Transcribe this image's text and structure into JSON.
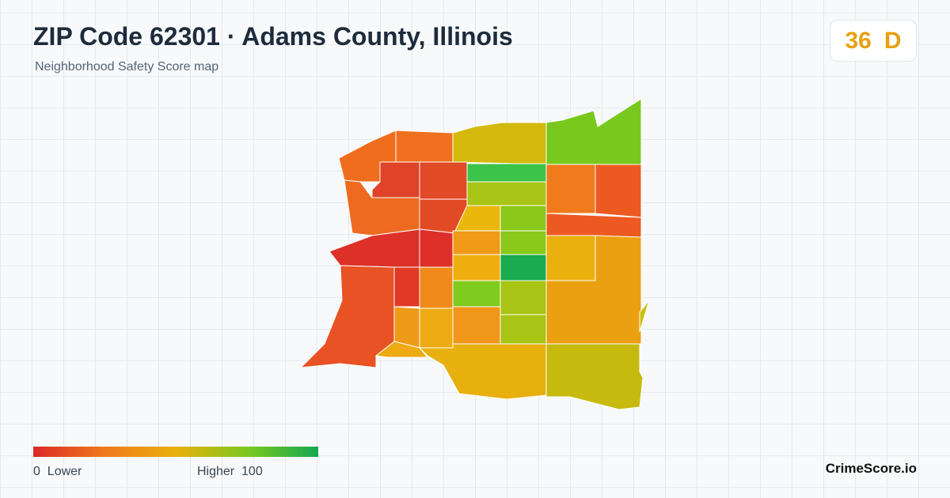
{
  "header": {
    "title": "ZIP Code 62301 · Adams County, Illinois",
    "subtitle": "Neighborhood Safety Score map"
  },
  "score": {
    "value": 36,
    "grade": "D"
  },
  "legend": {
    "min": 0,
    "min_label": "Lower",
    "max_label": "Higher",
    "max": 100
  },
  "brand": "CrimeScore.io"
}
